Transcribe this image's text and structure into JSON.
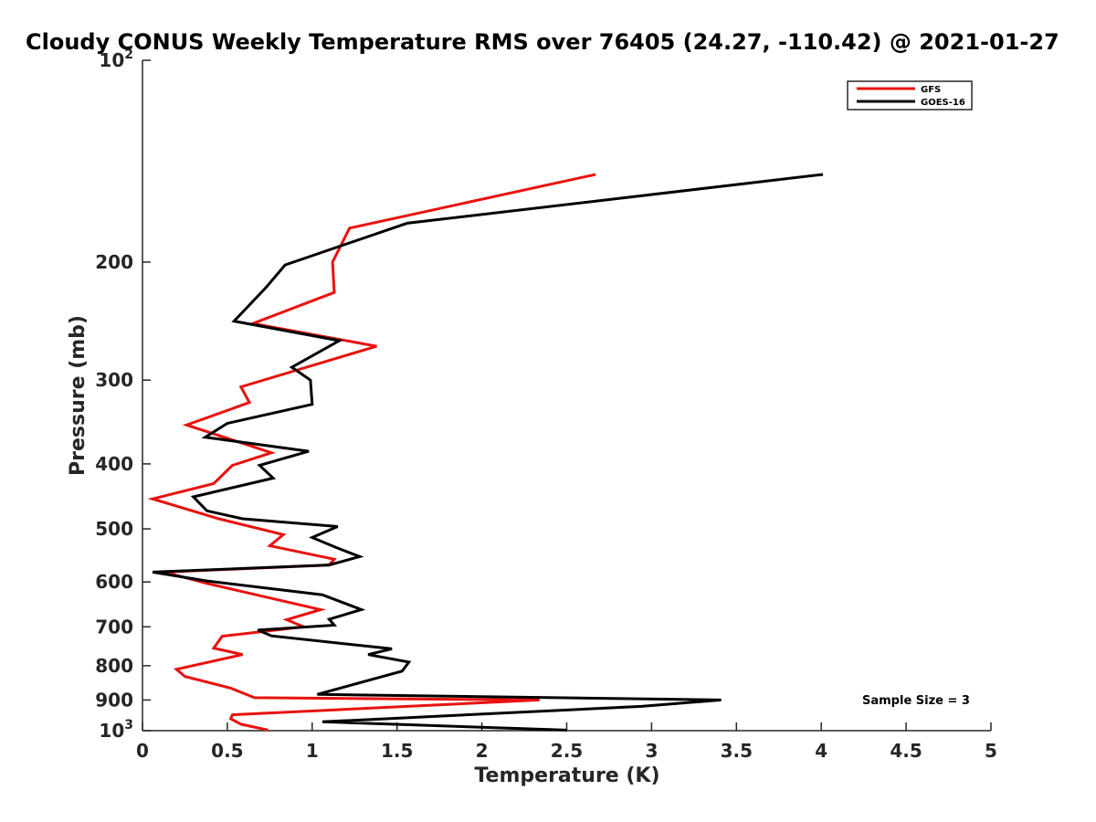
{
  "chart_data": {
    "type": "line",
    "title": "Cloudy CONUS Weekly Temperature RMS over 76405 (24.27, -110.42) @ 2021-01-27",
    "xlabel": "Temperature (K)",
    "ylabel": "Pressure (mb)",
    "xlim": [
      0,
      5
    ],
    "ylim": [
      100,
      1000
    ],
    "y_scale": "log",
    "y_reversed": true,
    "grid": false,
    "legend_position": "top-right",
    "x_ticks": [
      0,
      0.5,
      1,
      1.5,
      2,
      2.5,
      3,
      3.5,
      4,
      4.5,
      5
    ],
    "x_tick_labels": [
      "0",
      "0.5",
      "1",
      "1.5",
      "2",
      "2.5",
      "3",
      "3.5",
      "4",
      "4.5",
      "5"
    ],
    "y_ticks": [
      {
        "value": 100,
        "base": "10",
        "exp": "2",
        "label": ""
      },
      {
        "value": 200,
        "label": "200"
      },
      {
        "value": 300,
        "label": "300"
      },
      {
        "value": 400,
        "label": "400"
      },
      {
        "value": 500,
        "label": "500"
      },
      {
        "value": 600,
        "label": "600"
      },
      {
        "value": 700,
        "label": "700"
      },
      {
        "value": 800,
        "label": "800"
      },
      {
        "value": 900,
        "label": "900"
      },
      {
        "value": 1000,
        "base": "10",
        "exp": "3",
        "label": ""
      }
    ],
    "series": [
      {
        "name": "GFS",
        "color": "#e8120f",
        "x": [
          2.67,
          1.22,
          1.12,
          1.13,
          0.65,
          1.38,
          0.58,
          0.63,
          0.26,
          0.76,
          0.53,
          0.42,
          0.06,
          0.45,
          0.83,
          0.75,
          1.13,
          1.1,
          0.13,
          0.38,
          1.05,
          0.85,
          0.95,
          0.47,
          0.42,
          0.59,
          0.2,
          0.25,
          0.52,
          0.66,
          2.34,
          0.53,
          0.52,
          0.58,
          0.74
        ],
        "y": [
          148,
          178,
          200,
          222,
          247,
          267,
          307,
          324,
          350,
          385,
          402,
          428,
          451,
          483,
          510,
          530,
          555,
          566,
          580,
          603,
          660,
          683,
          700,
          723,
          753,
          770,
          810,
          830,
          864,
          893,
          900,
          947,
          960,
          978,
          998
        ]
      },
      {
        "name": "GOES-16",
        "color": "#000000",
        "x": [
          4.01,
          1.56,
          0.84,
          0.73,
          0.54,
          1.16,
          0.88,
          0.99,
          1.0,
          0.5,
          0.37,
          0.98,
          0.69,
          0.77,
          0.3,
          0.38,
          0.59,
          1.15,
          1.0,
          1.14,
          1.28,
          1.1,
          0.06,
          0.38,
          1.06,
          1.29,
          1.1,
          1.13,
          0.68,
          0.76,
          1.47,
          1.33,
          1.57,
          1.53,
          1.03,
          3.41,
          2.94,
          1.06,
          2.5
        ],
        "y": [
          148,
          175,
          202,
          218,
          245,
          262,
          287,
          300,
          326,
          348,
          365,
          383,
          402,
          420,
          448,
          470,
          483,
          496,
          515,
          533,
          550,
          566,
          580,
          598,
          627,
          660,
          682,
          696,
          708,
          722,
          755,
          770,
          790,
          815,
          883,
          900,
          920,
          970,
          998
        ]
      }
    ],
    "annotations": [
      "Sample Size = 3"
    ]
  }
}
